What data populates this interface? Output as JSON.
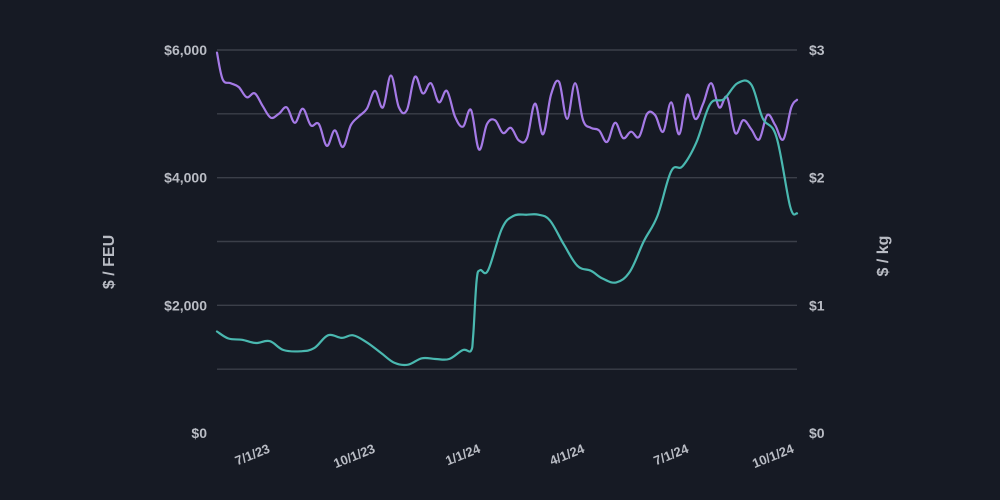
{
  "chart_data": {
    "type": "line",
    "title": "",
    "y_left": {
      "label": "$ / FEU",
      "range": [
        0,
        6000
      ],
      "ticks": [
        0,
        2000,
        4000,
        6000
      ],
      "tick_labels": [
        "$0",
        "$2,000",
        "$4,000",
        "$6,000"
      ]
    },
    "y_right": {
      "label": "$ / kg",
      "range": [
        0,
        3
      ],
      "ticks": [
        0,
        1,
        2,
        3
      ],
      "tick_labels": [
        "$0",
        "$1",
        "$2",
        "$3"
      ]
    },
    "x": {
      "range": [
        "2023-05-15",
        "2024-10-03"
      ],
      "ticks": [
        "2023-07-01",
        "2023-10-01",
        "2024-01-01",
        "2024-04-01",
        "2024-07-01",
        "2024-10-01"
      ],
      "tick_labels": [
        "7/1/23",
        "10/1/23",
        "1/1/24",
        "4/1/24",
        "7/1/24",
        "10/1/24"
      ]
    },
    "grid": "horizontal",
    "series": [
      {
        "axis": "right",
        "color": "#a57ae6",
        "points": [
          [
            "2023-05-15",
            2.98
          ],
          [
            "2023-05-20",
            2.77
          ],
          [
            "2023-05-27",
            2.74
          ],
          [
            "2023-06-03",
            2.71
          ],
          [
            "2023-06-10",
            2.63
          ],
          [
            "2023-06-17",
            2.66
          ],
          [
            "2023-06-24",
            2.56
          ],
          [
            "2023-07-01",
            2.47
          ],
          [
            "2023-07-08",
            2.5
          ],
          [
            "2023-07-15",
            2.55
          ],
          [
            "2023-07-22",
            2.43
          ],
          [
            "2023-07-29",
            2.54
          ],
          [
            "2023-08-05",
            2.41
          ],
          [
            "2023-08-12",
            2.42
          ],
          [
            "2023-08-19",
            2.25
          ],
          [
            "2023-08-26",
            2.37
          ],
          [
            "2023-09-02",
            2.24
          ],
          [
            "2023-09-09",
            2.41
          ],
          [
            "2023-09-16",
            2.48
          ],
          [
            "2023-09-23",
            2.54
          ],
          [
            "2023-09-30",
            2.68
          ],
          [
            "2023-10-07",
            2.55
          ],
          [
            "2023-10-14",
            2.8
          ],
          [
            "2023-10-21",
            2.55
          ],
          [
            "2023-10-28",
            2.53
          ],
          [
            "2023-11-04",
            2.79
          ],
          [
            "2023-11-11",
            2.66
          ],
          [
            "2023-11-18",
            2.74
          ],
          [
            "2023-11-25",
            2.59
          ],
          [
            "2023-12-02",
            2.68
          ],
          [
            "2023-12-09",
            2.48
          ],
          [
            "2023-12-16",
            2.4
          ],
          [
            "2023-12-23",
            2.53
          ],
          [
            "2023-12-30",
            2.22
          ],
          [
            "2024-01-06",
            2.42
          ],
          [
            "2024-01-13",
            2.45
          ],
          [
            "2024-01-20",
            2.35
          ],
          [
            "2024-01-27",
            2.39
          ],
          [
            "2024-02-03",
            2.29
          ],
          [
            "2024-02-10",
            2.31
          ],
          [
            "2024-02-17",
            2.58
          ],
          [
            "2024-02-24",
            2.34
          ],
          [
            "2024-03-02",
            2.65
          ],
          [
            "2024-03-09",
            2.75
          ],
          [
            "2024-03-16",
            2.46
          ],
          [
            "2024-03-23",
            2.74
          ],
          [
            "2024-03-30",
            2.45
          ],
          [
            "2024-04-06",
            2.39
          ],
          [
            "2024-04-13",
            2.37
          ],
          [
            "2024-04-20",
            2.28
          ],
          [
            "2024-04-27",
            2.43
          ],
          [
            "2024-05-04",
            2.31
          ],
          [
            "2024-05-11",
            2.36
          ],
          [
            "2024-05-18",
            2.32
          ],
          [
            "2024-05-25",
            2.5
          ],
          [
            "2024-06-01",
            2.49
          ],
          [
            "2024-06-08",
            2.36
          ],
          [
            "2024-06-15",
            2.59
          ],
          [
            "2024-06-22",
            2.34
          ],
          [
            "2024-06-29",
            2.65
          ],
          [
            "2024-07-06",
            2.46
          ],
          [
            "2024-07-13",
            2.58
          ],
          [
            "2024-07-20",
            2.74
          ],
          [
            "2024-07-27",
            2.55
          ],
          [
            "2024-08-03",
            2.63
          ],
          [
            "2024-08-10",
            2.35
          ],
          [
            "2024-08-17",
            2.45
          ],
          [
            "2024-08-24",
            2.38
          ],
          [
            "2024-08-31",
            2.3
          ],
          [
            "2024-09-07",
            2.49
          ],
          [
            "2024-09-14",
            2.41
          ],
          [
            "2024-09-21",
            2.3
          ],
          [
            "2024-09-28",
            2.55
          ],
          [
            "2024-10-03",
            2.61
          ]
        ]
      },
      {
        "axis": "left",
        "color": "#4ab8b0",
        "points": [
          [
            "2023-05-15",
            1590
          ],
          [
            "2023-05-25",
            1480
          ],
          [
            "2023-06-06",
            1460
          ],
          [
            "2023-06-18",
            1410
          ],
          [
            "2023-06-30",
            1440
          ],
          [
            "2023-07-12",
            1300
          ],
          [
            "2023-07-27",
            1280
          ],
          [
            "2023-08-08",
            1330
          ],
          [
            "2023-08-20",
            1530
          ],
          [
            "2023-09-01",
            1490
          ],
          [
            "2023-09-11",
            1530
          ],
          [
            "2023-09-23",
            1420
          ],
          [
            "2023-10-05",
            1260
          ],
          [
            "2023-10-17",
            1100
          ],
          [
            "2023-10-29",
            1070
          ],
          [
            "2023-11-10",
            1170
          ],
          [
            "2023-11-22",
            1160
          ],
          [
            "2023-12-04",
            1160
          ],
          [
            "2023-12-16",
            1300
          ],
          [
            "2023-12-23",
            1290
          ],
          [
            "2023-12-25",
            1550
          ],
          [
            "2023-12-28",
            2400
          ],
          [
            "2023-12-31",
            2550
          ],
          [
            "2024-01-07",
            2550
          ],
          [
            "2024-01-19",
            3200
          ],
          [
            "2024-01-29",
            3400
          ],
          [
            "2024-02-10",
            3420
          ],
          [
            "2024-02-20",
            3420
          ],
          [
            "2024-03-01",
            3330
          ],
          [
            "2024-03-13",
            2960
          ],
          [
            "2024-03-25",
            2620
          ],
          [
            "2024-04-06",
            2540
          ],
          [
            "2024-04-16",
            2420
          ],
          [
            "2024-04-28",
            2360
          ],
          [
            "2024-05-10",
            2530
          ],
          [
            "2024-05-22",
            3000
          ],
          [
            "2024-06-03",
            3400
          ],
          [
            "2024-06-15",
            4100
          ],
          [
            "2024-06-25",
            4180
          ],
          [
            "2024-07-07",
            4550
          ],
          [
            "2024-07-19",
            5150
          ],
          [
            "2024-07-31",
            5230
          ],
          [
            "2024-08-12",
            5480
          ],
          [
            "2024-08-24",
            5460
          ],
          [
            "2024-09-03",
            4930
          ],
          [
            "2024-09-15",
            4640
          ],
          [
            "2024-09-27",
            3550
          ],
          [
            "2024-10-03",
            3440
          ]
        ]
      }
    ]
  }
}
